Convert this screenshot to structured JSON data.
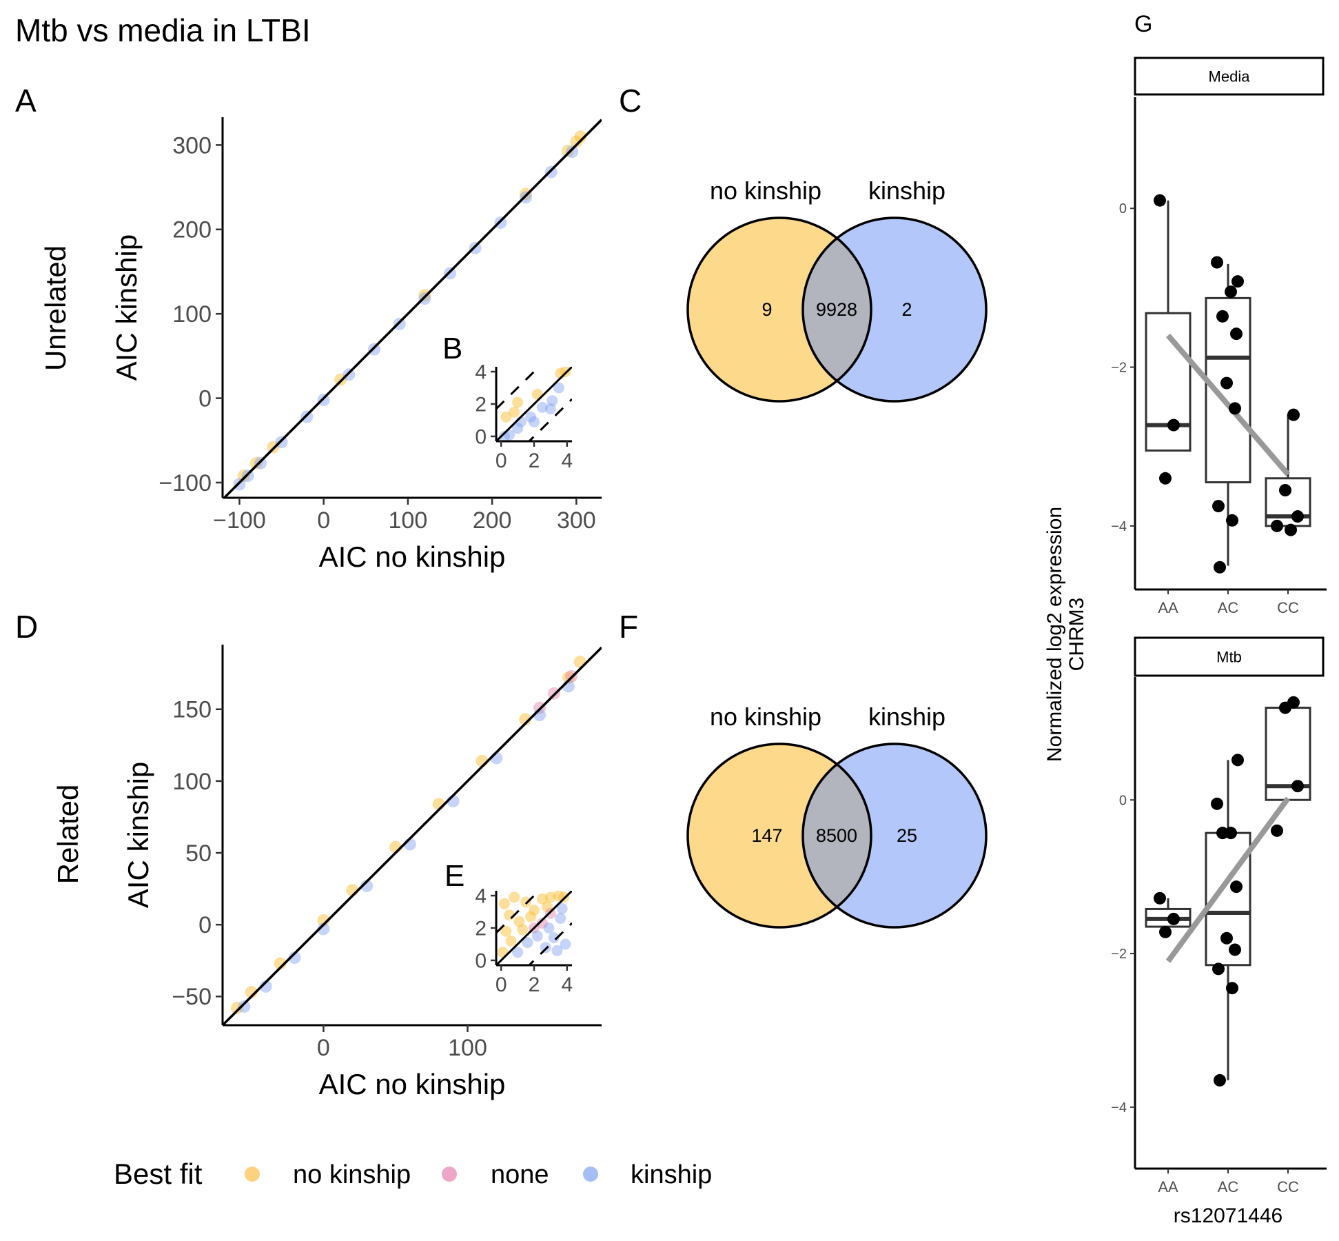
{
  "figure_title": "Mtb vs media in LTBI",
  "panel_letters": {
    "A": "A",
    "B": "B",
    "C": "C",
    "D": "D",
    "E": "E",
    "F": "F",
    "G": "G"
  },
  "row_labels": {
    "top": "Unrelated",
    "bottom": "Related"
  },
  "legend": {
    "title": "Best fit",
    "items": [
      {
        "label": "no kinship",
        "color": "#FDD27E"
      },
      {
        "label": "none",
        "color": "#EDA6C6"
      },
      {
        "label": "kinship",
        "color": "#A5BEF5"
      }
    ]
  },
  "colors": {
    "no_kinship": "#FBB824",
    "none": "#E57FA8",
    "kinship": "#7E9FF0",
    "venn_left": "#FDD98B",
    "venn_right": "#B3C7FB",
    "venn_overlap": "#B3B5BE",
    "trend_line": "#999999"
  },
  "chart_data": [
    {
      "id": "A",
      "type": "scatter",
      "title": "",
      "xlabel": "AIC no kinship",
      "ylabel": "AIC kinship",
      "xlim": [
        -120,
        330
      ],
      "ylim": [
        -118,
        333
      ],
      "xticks": [
        -100,
        0,
        100,
        200,
        300
      ],
      "yticks": [
        -100,
        0,
        100,
        200,
        300
      ],
      "xtick_labels": [
        "−100",
        "0",
        "100",
        "200",
        "300"
      ],
      "ytick_labels": [
        "−100",
        "0",
        "100",
        "200",
        "300"
      ],
      "reference_line": "y = x",
      "series": [
        {
          "name": "no kinship",
          "x": [
            -95,
            -80,
            -60,
            20,
            120,
            240,
            290,
            300,
            305
          ],
          "y": [
            -92,
            -77,
            -58,
            22,
            122,
            242,
            293,
            304,
            310
          ]
        },
        {
          "name": "kinship",
          "x": [
            -100,
            -90,
            -75,
            -50,
            -20,
            0,
            30,
            60,
            90,
            120,
            150,
            180,
            210,
            240,
            270,
            295
          ],
          "y": [
            -102,
            -92,
            -77,
            -52,
            -22,
            -2,
            28,
            58,
            88,
            118,
            148,
            178,
            208,
            238,
            268,
            292
          ]
        }
      ]
    },
    {
      "id": "B",
      "type": "scatter",
      "title": "",
      "xlim": [
        -0.3,
        4.3
      ],
      "ylim": [
        -0.3,
        4.3
      ],
      "xticks": [
        0,
        2,
        4
      ],
      "yticks": [
        0,
        2,
        4
      ],
      "xtick_labels": [
        "0",
        "2",
        "4"
      ],
      "ytick_labels": [
        "0",
        "2",
        "4"
      ],
      "reference_lines": [
        "y = x",
        "y = x + 2",
        "y = x - 2"
      ],
      "series": [
        {
          "name": "no kinship",
          "x": [
            0.3,
            0.8,
            1.0,
            2.2,
            3.6,
            3.9
          ],
          "y": [
            1.2,
            1.5,
            2.1,
            2.6,
            3.9,
            4.0
          ]
        },
        {
          "name": "kinship",
          "x": [
            0.5,
            1.2,
            1.8,
            2.5,
            3.1,
            3.5,
            2.0,
            1.0,
            3.0,
            0.2
          ],
          "y": [
            0.1,
            0.9,
            1.2,
            1.8,
            2.2,
            3.0,
            0.9,
            0.5,
            1.7,
            0.0
          ]
        }
      ]
    },
    {
      "id": "D",
      "type": "scatter",
      "title": "",
      "xlabel": "AIC no kinship",
      "ylabel": "AIC kinship",
      "xlim": [
        -70,
        193
      ],
      "ylim": [
        -70,
        195
      ],
      "xticks": [
        0,
        100
      ],
      "yticks": [
        -50,
        0,
        50,
        100,
        150
      ],
      "xtick_labels": [
        "0",
        "100"
      ],
      "ytick_labels": [
        "−50",
        "0",
        "50",
        "100",
        "150"
      ],
      "reference_line": "y = x",
      "series": [
        {
          "name": "no kinship",
          "x": [
            -60,
            -50,
            -30,
            0,
            20,
            50,
            80,
            110,
            140,
            170,
            178
          ],
          "y": [
            -58,
            -47,
            -27,
            3,
            24,
            54,
            84,
            114,
            143,
            172,
            183
          ]
        },
        {
          "name": "none",
          "x": [
            150,
            160,
            172
          ],
          "y": [
            151,
            161,
            173
          ]
        },
        {
          "name": "kinship",
          "x": [
            -55,
            -40,
            -20,
            0,
            30,
            60,
            90,
            120,
            150,
            170
          ],
          "y": [
            -57,
            -43,
            -23,
            -3,
            27,
            56,
            86,
            116,
            146,
            166
          ]
        }
      ]
    },
    {
      "id": "E",
      "type": "scatter",
      "title": "",
      "xlim": [
        -0.3,
        4.3
      ],
      "ylim": [
        -0.3,
        4.3
      ],
      "xticks": [
        0,
        2,
        4
      ],
      "yticks": [
        0,
        2,
        4
      ],
      "xtick_labels": [
        "0",
        "2",
        "4"
      ],
      "ytick_labels": [
        "0",
        "2",
        "4"
      ],
      "reference_lines": [
        "y = x",
        "y = x + 2",
        "y = x - 2"
      ],
      "series": [
        {
          "name": "no kinship",
          "x": [
            0.2,
            0.5,
            0.8,
            1.1,
            1.5,
            2.0,
            2.5,
            3.0,
            0.3,
            1.8,
            3.5,
            0.6,
            2.8,
            3.8,
            1.3,
            0.1
          ],
          "y": [
            3.5,
            2.8,
            3.9,
            2.4,
            3.6,
            3.1,
            3.8,
            3.9,
            1.8,
            2.7,
            4.0,
            1.2,
            3.3,
            3.9,
            1.9,
            0.5
          ]
        },
        {
          "name": "none",
          "x": [
            2.0,
            2.5,
            3.0
          ],
          "y": [
            2.0,
            2.3,
            2.9
          ]
        },
        {
          "name": "kinship",
          "x": [
            1.0,
            1.6,
            2.2,
            2.7,
            3.2,
            3.6,
            3.9,
            3.4,
            2.9,
            3.7
          ],
          "y": [
            0.5,
            1.1,
            1.5,
            0.8,
            1.4,
            2.6,
            1.0,
            0.6,
            2.0,
            3.2
          ]
        }
      ]
    },
    {
      "id": "C",
      "type": "venn",
      "sets": [
        "no kinship",
        "kinship"
      ],
      "values": {
        "no kinship only": 9,
        "both": 9928,
        "kinship only": 2
      },
      "labels": {
        "left": "9",
        "both": "9928",
        "right": "2"
      }
    },
    {
      "id": "F",
      "type": "venn",
      "sets": [
        "no kinship",
        "kinship"
      ],
      "values": {
        "no kinship only": 147,
        "both": 8500,
        "kinship only": 25
      },
      "labels": {
        "left": "147",
        "both": "8500",
        "right": "25"
      }
    },
    {
      "id": "G-Media",
      "type": "box",
      "facet": "Media",
      "categories": [
        "AA",
        "AC",
        "CC"
      ],
      "ylim": [
        -4.8,
        1.4
      ],
      "yticks": [
        0,
        -2,
        -4
      ],
      "ytick_labels": [
        "0",
        "−2",
        "−4"
      ],
      "boxes": [
        {
          "q1": -3.05,
          "median": -2.73,
          "q3": -1.32,
          "whisker_low": -3.05,
          "whisker_high": 0.1
        },
        {
          "q1": -3.45,
          "median": -1.88,
          "q3": -1.13,
          "whisker_low": -4.5,
          "whisker_high": -0.7
        },
        {
          "q1": -4.0,
          "median": -3.88,
          "q3": -3.4,
          "whisker_low": -4.0,
          "whisker_high": -2.6
        }
      ],
      "points": [
        {
          "g": 0,
          "y": 0.1
        },
        {
          "g": 0,
          "y": -2.73
        },
        {
          "g": 0,
          "y": -3.4
        },
        {
          "g": 1,
          "y": -0.92
        },
        {
          "g": 1,
          "y": -0.68
        },
        {
          "g": 1,
          "y": -1.05
        },
        {
          "g": 1,
          "y": -1.36
        },
        {
          "g": 1,
          "y": -1.58
        },
        {
          "g": 1,
          "y": -2.2
        },
        {
          "g": 1,
          "y": -2.52
        },
        {
          "g": 1,
          "y": -3.75
        },
        {
          "g": 1,
          "y": -3.93
        },
        {
          "g": 1,
          "y": -4.52
        },
        {
          "g": 2,
          "y": -2.6
        },
        {
          "g": 2,
          "y": -3.55
        },
        {
          "g": 2,
          "y": -3.88
        },
        {
          "g": 2,
          "y": -4.0
        },
        {
          "g": 2,
          "y": -4.05
        }
      ],
      "trend": {
        "from": [
          0,
          -1.6
        ],
        "to": [
          2,
          -3.35
        ]
      }
    },
    {
      "id": "G-Mtb",
      "type": "box",
      "facet": "Mtb",
      "categories": [
        "AA",
        "AC",
        "CC"
      ],
      "xlabel": "rs12071446",
      "ylim": [
        -4.8,
        1.6
      ],
      "yticks": [
        0,
        -2,
        -4
      ],
      "ytick_labels": [
        "0",
        "−2",
        "−4"
      ],
      "boxes": [
        {
          "q1": -1.65,
          "median": -1.55,
          "q3": -1.42,
          "whisker_low": -1.72,
          "whisker_high": -1.28
        },
        {
          "q1": -2.15,
          "median": -1.47,
          "q3": -0.43,
          "whisker_low": -3.65,
          "whisker_high": 0.52
        },
        {
          "q1": 0.0,
          "median": 0.18,
          "q3": 1.2,
          "whisker_low": 0.0,
          "whisker_high": 1.27
        }
      ],
      "points": [
        {
          "g": 0,
          "y": -1.28
        },
        {
          "g": 0,
          "y": -1.55
        },
        {
          "g": 0,
          "y": -1.72
        },
        {
          "g": 1,
          "y": 0.52
        },
        {
          "g": 1,
          "y": -0.05
        },
        {
          "g": 1,
          "y": -0.43
        },
        {
          "g": 1,
          "y": -0.43
        },
        {
          "g": 1,
          "y": -1.13
        },
        {
          "g": 1,
          "y": -1.8
        },
        {
          "g": 1,
          "y": -1.95
        },
        {
          "g": 1,
          "y": -2.2
        },
        {
          "g": 1,
          "y": -2.45
        },
        {
          "g": 1,
          "y": -3.65
        },
        {
          "g": 2,
          "y": 1.27
        },
        {
          "g": 2,
          "y": 1.2
        },
        {
          "g": 2,
          "y": 0.18
        },
        {
          "g": 2,
          "y": -0.4
        }
      ],
      "trend": {
        "from": [
          0,
          -2.1
        ],
        "to": [
          2,
          0.02
        ]
      }
    }
  ],
  "G_shared": {
    "ylabel_line1": "Normalized log2 expression",
    "ylabel_line2": "CHRM3"
  }
}
